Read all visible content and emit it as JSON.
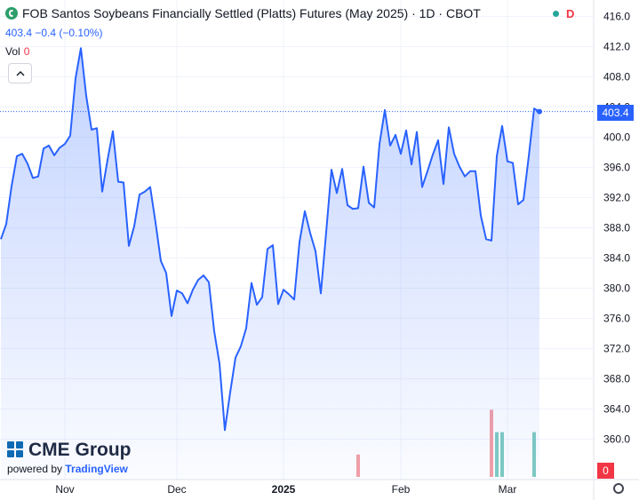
{
  "header": {
    "title": "FOB Santos Soybeans Financially Settled (Platts) Futures (May 2025) · 1D · CBOT",
    "status_letter": "D",
    "last_price": "403.4",
    "change": "−0.4",
    "change_pct": "(−0.10%)",
    "vol_label": "Vol",
    "vol_value": "0",
    "collapse_icon": "chevron-up-icon"
  },
  "brand": {
    "name": "CME Group",
    "powered_by": "powered by",
    "provider": "TradingView"
  },
  "price_tag": "403.4",
  "volume_tag": "0",
  "colors": {
    "line": "#2962ff",
    "area": "#2962ff",
    "vol_up": "#7ecbc2",
    "vol_down": "#f4a0a6",
    "grid": "#f0f3fa",
    "axis_text": "#131722"
  },
  "chart_data": {
    "type": "area",
    "ylim": [
      356,
      417
    ],
    "y_ticks": [
      "416.0",
      "412.0",
      "408.0",
      "404.0",
      "400.0",
      "396.0",
      "392.0",
      "388.0",
      "384.0",
      "380.0",
      "376.0",
      "372.0",
      "368.0",
      "364.0",
      "360.0"
    ],
    "x_ticks": [
      {
        "label": "Nov",
        "index": 12
      },
      {
        "label": "Dec",
        "index": 33
      },
      {
        "label": "2025",
        "index": 53
      },
      {
        "label": "Feb",
        "index": 75
      },
      {
        "label": "Mar",
        "index": 95
      }
    ],
    "last_value": 403.4,
    "values": [
      386.5,
      388.5,
      393.5,
      397.5,
      397.8,
      396.5,
      394.6,
      394.8,
      398.5,
      398.9,
      397.6,
      398.6,
      399.1,
      400.2,
      407.8,
      411.8,
      405.5,
      401.0,
      401.2,
      392.8,
      397.0,
      400.8,
      394.1,
      394.0,
      385.6,
      388.2,
      392.4,
      392.8,
      393.4,
      388.7,
      383.6,
      382.0,
      376.3,
      379.7,
      379.3,
      378.0,
      379.8,
      381.1,
      381.7,
      380.8,
      374.3,
      370.0,
      361.2,
      366.2,
      370.8,
      372.3,
      374.7,
      380.7,
      377.8,
      378.8,
      385.2,
      385.7,
      377.9,
      379.8,
      379.2,
      378.5,
      386.1,
      390.2,
      387.3,
      384.9,
      379.3,
      387.4,
      395.7,
      392.6,
      395.8,
      391.0,
      390.5,
      390.6,
      396.1,
      391.3,
      390.7,
      399.1,
      403.6,
      398.9,
      400.3,
      397.8,
      400.9,
      396.4,
      400.7,
      393.4,
      395.5,
      397.7,
      399.6,
      393.8,
      401.3,
      397.8,
      396.1,
      394.8,
      395.5,
      395.5,
      389.6,
      386.5,
      386.3,
      397.5,
      401.5,
      396.8,
      396.6,
      391.1,
      391.7,
      397.5,
      403.8,
      403.4
    ],
    "volume": [
      {
        "index": 67,
        "value": 2,
        "color": "down"
      },
      {
        "index": 92,
        "value": 6,
        "color": "down"
      },
      {
        "index": 93,
        "value": 4,
        "color": "up"
      },
      {
        "index": 94,
        "value": 4,
        "color": "up"
      },
      {
        "index": 100,
        "value": 4,
        "color": "up"
      }
    ]
  }
}
